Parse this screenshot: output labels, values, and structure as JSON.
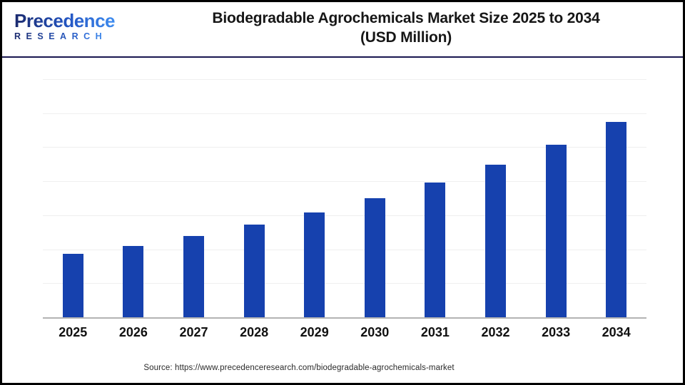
{
  "header": {
    "logo": {
      "line1": "Precedence",
      "line2": "RESEARCH"
    },
    "title_line1": "Biodegradable Agrochemicals Market Size 2025 to 2034",
    "title_line2": "(USD Million)"
  },
  "source": {
    "text": "Source: https://www.precedenceresearch.com/biodegradable-agrochemicals-market"
  },
  "colors": {
    "bar": "#1641ae",
    "header_divider": "#191750",
    "axis_baseline": "#b3b3b3",
    "gridline": "#efefef",
    "title_text": "#161616",
    "logo_navy": "#1b2a6e",
    "logo_blue": "#3f8df0",
    "frame_border": "#000000"
  },
  "chart_data": {
    "type": "bar",
    "title": "Biodegradable Agrochemicals Market Size 2025 to 2034",
    "subtitle": "(USD Million)",
    "xlabel": "",
    "ylabel": "",
    "categories": [
      "2025",
      "2026",
      "2027",
      "2028",
      "2029",
      "2030",
      "2031",
      "2032",
      "2033",
      "2034"
    ],
    "values": [
      90,
      101,
      115,
      131,
      148,
      168,
      190,
      215,
      243,
      276
    ],
    "value_units": "relative bar heights (pixels); no numeric y-axis labels are shown in the image",
    "ylim": [
      0,
      336
    ],
    "grid": "horizontal",
    "gridline_intervals": 7,
    "y_axis_labels_visible": false,
    "data_labels_visible": false,
    "legend_position": "none",
    "bar_color": "#1641ae"
  }
}
